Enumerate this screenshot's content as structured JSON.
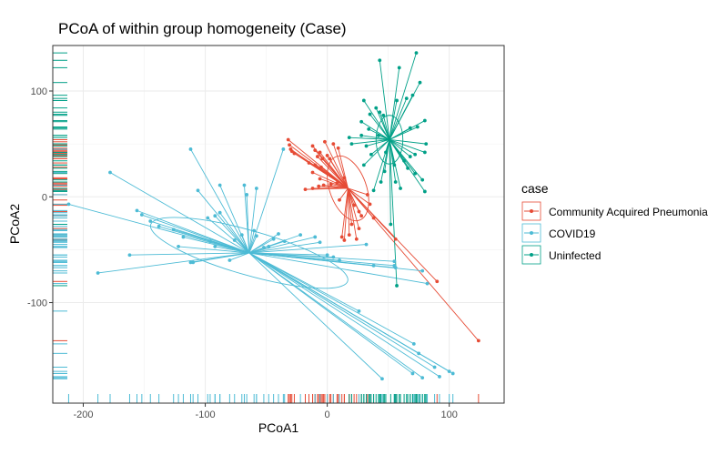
{
  "chart_data": {
    "type": "scatter",
    "title": "PCoA of within group homogeneity (Case)",
    "xlabel": "PCoA1",
    "ylabel": "PCoA2",
    "xlim": [
      -225,
      145
    ],
    "ylim": [
      -195,
      143
    ],
    "xticks": [
      -200,
      -100,
      0,
      100
    ],
    "yticks": [
      -100,
      0,
      100
    ],
    "grid": true,
    "legend": {
      "title": "case",
      "position": "right",
      "entries": [
        "Community Acquired Pneumonia",
        "COVID19",
        "Uninfected"
      ]
    },
    "series": [
      {
        "name": "Community Acquired Pneumonia",
        "color": "#E64B35",
        "centroid": [
          17,
          8
        ],
        "ellipse": {
          "rx": 15,
          "ry": 32,
          "angle_deg": -20
        },
        "points": [
          [
            -32,
            54
          ],
          [
            -31,
            49
          ],
          [
            -30,
            45
          ],
          [
            -29,
            43
          ],
          [
            -27,
            41
          ],
          [
            -12,
            48
          ],
          [
            -10,
            44
          ],
          [
            -8,
            38
          ],
          [
            -6,
            42
          ],
          [
            -4,
            36
          ],
          [
            -2,
            52
          ],
          [
            0,
            39
          ],
          [
            2,
            36
          ],
          [
            5,
            50
          ],
          [
            9,
            46
          ],
          [
            -15,
            32
          ],
          [
            -10,
            30
          ],
          [
            -5,
            28
          ],
          [
            -12,
            23
          ],
          [
            -6,
            17
          ],
          [
            -18,
            7
          ],
          [
            -12,
            8
          ],
          [
            -7,
            10
          ],
          [
            -3,
            11
          ],
          [
            3,
            12
          ],
          [
            8,
            13
          ],
          [
            14,
            18
          ],
          [
            10,
            -3
          ],
          [
            18,
            2
          ],
          [
            22,
            -8
          ],
          [
            26,
            -14
          ],
          [
            28,
            -18
          ],
          [
            38,
            -20
          ],
          [
            33,
            2
          ],
          [
            35,
            -7
          ],
          [
            20,
            -26
          ],
          [
            26,
            -30
          ],
          [
            18,
            -36
          ],
          [
            24,
            -40
          ],
          [
            12,
            -38
          ],
          [
            14,
            -41
          ],
          [
            56,
            -40
          ],
          [
            90,
            -80
          ],
          [
            124,
            -136
          ]
        ]
      },
      {
        "name": "COVID19",
        "color": "#4DBBD5",
        "centroid": [
          -64,
          -53
        ],
        "ellipse": {
          "rx": 84,
          "ry": 21,
          "angle_deg": 16
        },
        "points": [
          [
            -212,
            -7
          ],
          [
            -188,
            -72
          ],
          [
            -178,
            23
          ],
          [
            -162,
            -55
          ],
          [
            -156,
            -13
          ],
          [
            -152,
            -17
          ],
          [
            -145,
            -23
          ],
          [
            -138,
            -28
          ],
          [
            -126,
            -31
          ],
          [
            -122,
            -47
          ],
          [
            -118,
            -38
          ],
          [
            -112,
            -62
          ],
          [
            -110,
            -62
          ],
          [
            -106,
            6
          ],
          [
            -98,
            -20
          ],
          [
            -96,
            -42
          ],
          [
            -92,
            -18
          ],
          [
            -88,
            -15
          ],
          [
            -112,
            45
          ],
          [
            -92,
            -47
          ],
          [
            -80,
            -60
          ],
          [
            -76,
            -41
          ],
          [
            -70,
            -36
          ],
          [
            -60,
            -32
          ],
          [
            -58,
            -37
          ],
          [
            -52,
            -48
          ],
          [
            -48,
            -47
          ],
          [
            -44,
            -40
          ],
          [
            -40,
            -35
          ],
          [
            -35,
            -42
          ],
          [
            -36,
            45
          ],
          [
            -22,
            -36
          ],
          [
            -10,
            -38
          ],
          [
            -6,
            -43
          ],
          [
            0,
            -55
          ],
          [
            5,
            -57
          ],
          [
            10,
            -60
          ],
          [
            -88,
            11
          ],
          [
            -66,
            2
          ],
          [
            -58,
            8
          ],
          [
            -68,
            11
          ],
          [
            32,
            -45
          ],
          [
            38,
            -65
          ],
          [
            55,
            -61
          ],
          [
            55,
            -65
          ],
          [
            56,
            -67
          ],
          [
            78,
            -70
          ],
          [
            82,
            -82
          ],
          [
            26,
            -108
          ],
          [
            71,
            -139
          ],
          [
            45,
            -172
          ],
          [
            70,
            -167
          ],
          [
            78,
            -171
          ],
          [
            88,
            -161
          ],
          [
            92,
            -170
          ],
          [
            100,
            -165
          ],
          [
            103,
            -167
          ],
          [
            75,
            -148
          ]
        ]
      },
      {
        "name": "Uninfected",
        "color": "#00A087",
        "centroid": [
          51,
          54
        ],
        "ellipse": {
          "rx": 11,
          "ry": 23,
          "angle_deg": 0
        },
        "points": [
          [
            43,
            129
          ],
          [
            59,
            122
          ],
          [
            73,
            136
          ],
          [
            76,
            108
          ],
          [
            70,
            96
          ],
          [
            57,
            91
          ],
          [
            65,
            93
          ],
          [
            30,
            91
          ],
          [
            40,
            84
          ],
          [
            43,
            80
          ],
          [
            46,
            77
          ],
          [
            80,
            72
          ],
          [
            68,
            65
          ],
          [
            74,
            66
          ],
          [
            81,
            50
          ],
          [
            80,
            42
          ],
          [
            72,
            40
          ],
          [
            68,
            38
          ],
          [
            63,
            34
          ],
          [
            66,
            27
          ],
          [
            72,
            22
          ],
          [
            78,
            16
          ],
          [
            80,
            5
          ],
          [
            60,
            8
          ],
          [
            56,
            14
          ],
          [
            34,
            64
          ],
          [
            28,
            71
          ],
          [
            35,
            78
          ],
          [
            28,
            58
          ],
          [
            32,
            48
          ],
          [
            36,
            40
          ],
          [
            30,
            30
          ],
          [
            18,
            56
          ],
          [
            20,
            50
          ],
          [
            42,
            58
          ],
          [
            48,
            42
          ],
          [
            55,
            30
          ],
          [
            52,
            -26
          ],
          [
            57,
            -84
          ],
          [
            44,
            14
          ],
          [
            38,
            6
          ],
          [
            47,
            24
          ]
        ]
      }
    ]
  }
}
